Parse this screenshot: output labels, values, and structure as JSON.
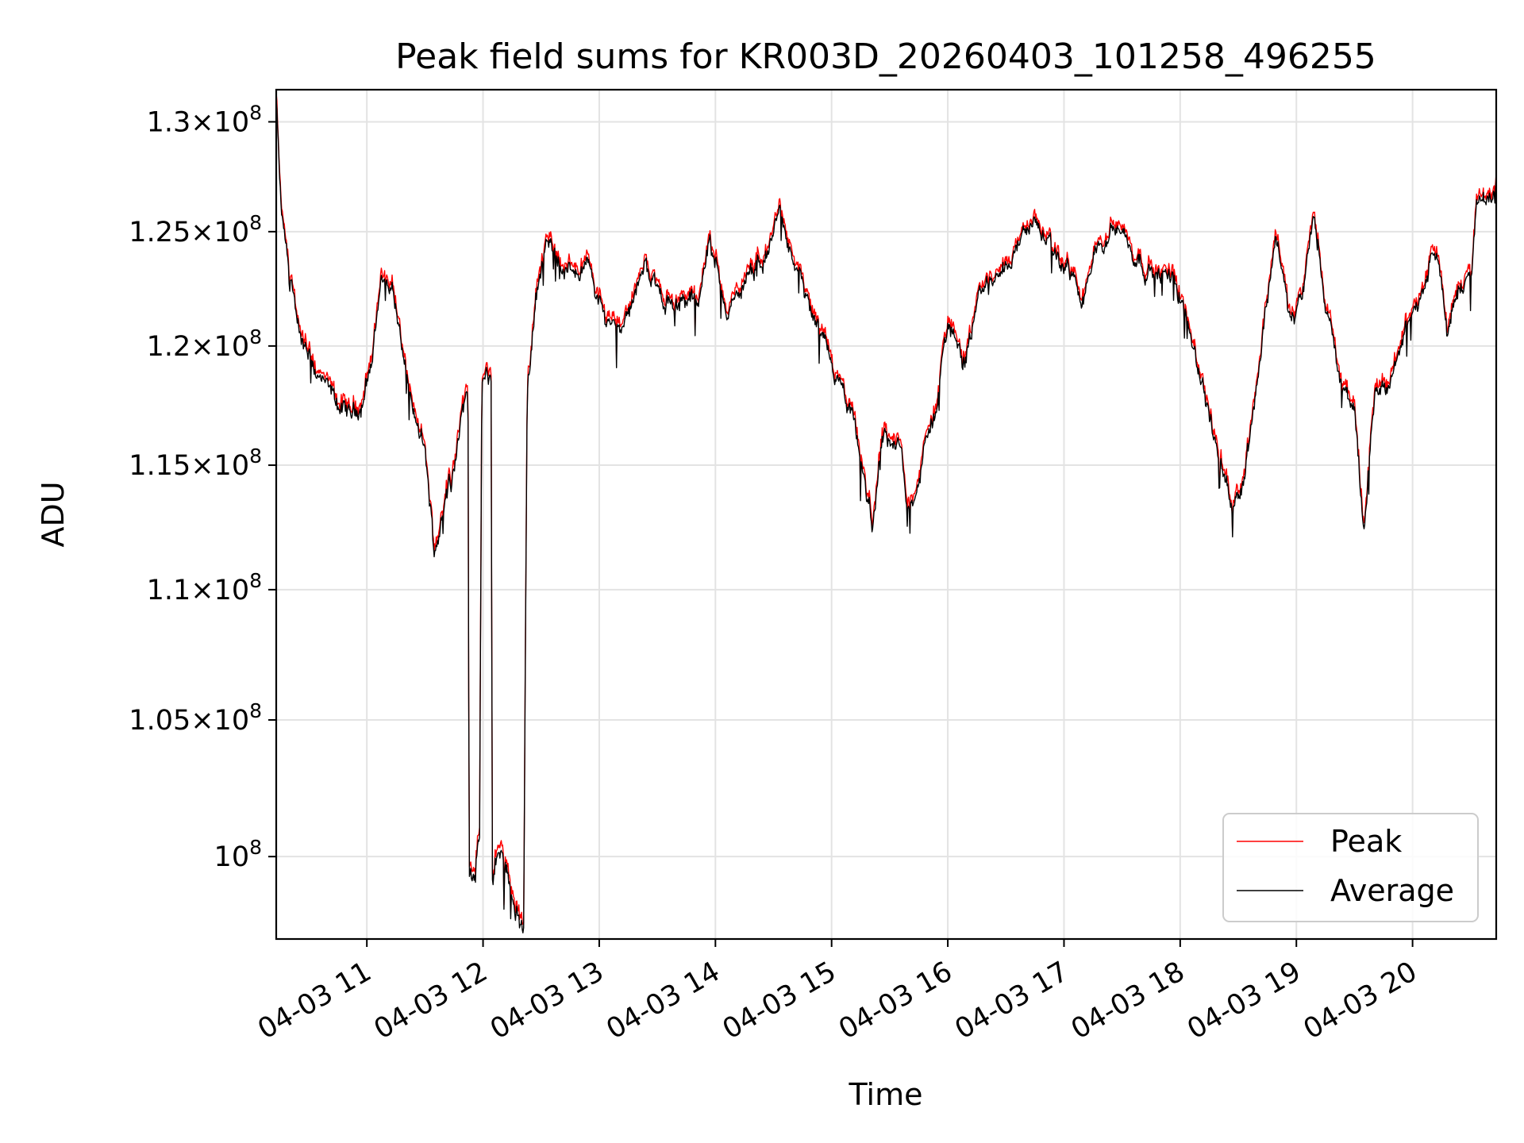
{
  "chart_data": {
    "type": "line",
    "title": "Peak field sums for KR003D_20260403_101258_496255",
    "xlabel": "Time",
    "ylabel": "ADU",
    "grid": true,
    "legend_position": "lower-right",
    "x_unit": "hours since 04-03 10:00",
    "xlim": [
      0.22,
      10.72
    ],
    "ylim": [
      97100000,
      131500000
    ],
    "x_ticks": [
      {
        "value": 1,
        "label": "04-03 11"
      },
      {
        "value": 2,
        "label": "04-03 12"
      },
      {
        "value": 3,
        "label": "04-03 13"
      },
      {
        "value": 4,
        "label": "04-03 14"
      },
      {
        "value": 5,
        "label": "04-03 15"
      },
      {
        "value": 6,
        "label": "04-03 16"
      },
      {
        "value": 7,
        "label": "04-03 17"
      },
      {
        "value": 8,
        "label": "04-03 18"
      },
      {
        "value": 9,
        "label": "04-03 19"
      },
      {
        "value": 10,
        "label": "04-03 20"
      }
    ],
    "y_ticks": [
      {
        "value": 100000000,
        "mantissa": "",
        "exp": "8"
      },
      {
        "value": 105000000,
        "mantissa": "1.05",
        "exp": "8"
      },
      {
        "value": 110000000,
        "mantissa": "1.1",
        "exp": "8"
      },
      {
        "value": 115000000,
        "mantissa": "1.15",
        "exp": "8"
      },
      {
        "value": 120000000,
        "mantissa": "1.2",
        "exp": "8"
      },
      {
        "value": 125000000,
        "mantissa": "1.25",
        "exp": "8"
      },
      {
        "value": 130000000,
        "mantissa": "1.3",
        "exp": "8"
      }
    ],
    "series": [
      {
        "name": "Peak",
        "color": "#ff0000",
        "offset": 200000
      },
      {
        "name": "Average",
        "color": "#000000",
        "offset": 0
      }
    ],
    "trend": [
      [
        0.22,
        131000000
      ],
      [
        0.26,
        126000000
      ],
      [
        0.32,
        123500000
      ],
      [
        0.45,
        120000000
      ],
      [
        0.6,
        118500000
      ],
      [
        0.75,
        117500000
      ],
      [
        0.85,
        117000000
      ],
      [
        0.95,
        117500000
      ],
      [
        1.05,
        119500000
      ],
      [
        1.12,
        123000000
      ],
      [
        1.22,
        122500000
      ],
      [
        1.3,
        120000000
      ],
      [
        1.4,
        117000000
      ],
      [
        1.5,
        115500000
      ],
      [
        1.58,
        111500000
      ],
      [
        1.7,
        114000000
      ],
      [
        1.8,
        116500000
      ],
      [
        1.85,
        117800000
      ],
      [
        1.87,
        118000000
      ],
      [
        1.88,
        99200000
      ],
      [
        1.92,
        99600000
      ],
      [
        1.97,
        100500000
      ],
      [
        1.99,
        118500000
      ],
      [
        2.07,
        118500000
      ],
      [
        2.08,
        99200000
      ],
      [
        2.15,
        100400000
      ],
      [
        2.25,
        98800000
      ],
      [
        2.35,
        97300000
      ],
      [
        2.38,
        118000000
      ],
      [
        2.45,
        122000000
      ],
      [
        2.55,
        124500000
      ],
      [
        2.7,
        123200000
      ],
      [
        2.9,
        123500000
      ],
      [
        3.05,
        121200000
      ],
      [
        3.2,
        121000000
      ],
      [
        3.4,
        123500000
      ],
      [
        3.55,
        122000000
      ],
      [
        3.7,
        121800000
      ],
      [
        3.85,
        122000000
      ],
      [
        3.95,
        124500000
      ],
      [
        4.1,
        121500000
      ],
      [
        4.3,
        123000000
      ],
      [
        4.45,
        124000000
      ],
      [
        4.55,
        126000000
      ],
      [
        4.65,
        124000000
      ],
      [
        4.85,
        121000000
      ],
      [
        5.05,
        118500000
      ],
      [
        5.2,
        116500000
      ],
      [
        5.35,
        112500000
      ],
      [
        5.45,
        116500000
      ],
      [
        5.6,
        115500000
      ],
      [
        5.65,
        113000000
      ],
      [
        5.75,
        114500000
      ],
      [
        5.9,
        117500000
      ],
      [
        6.0,
        121000000
      ],
      [
        6.15,
        119500000
      ],
      [
        6.3,
        122500000
      ],
      [
        6.5,
        123500000
      ],
      [
        6.6,
        124500000
      ],
      [
        6.75,
        125500000
      ],
      [
        6.9,
        124000000
      ],
      [
        7.1,
        123000000
      ],
      [
        7.15,
        121500000
      ],
      [
        7.3,
        124500000
      ],
      [
        7.45,
        125500000
      ],
      [
        7.6,
        124000000
      ],
      [
        7.8,
        123000000
      ],
      [
        7.95,
        123000000
      ],
      [
        8.05,
        121500000
      ],
      [
        8.3,
        116000000
      ],
      [
        8.45,
        113500000
      ],
      [
        8.55,
        114500000
      ],
      [
        8.7,
        120000000
      ],
      [
        8.82,
        125000000
      ],
      [
        8.95,
        121000000
      ],
      [
        9.05,
        122000000
      ],
      [
        9.15,
        125500000
      ],
      [
        9.28,
        121000000
      ],
      [
        9.4,
        118000000
      ],
      [
        9.5,
        117500000
      ],
      [
        9.58,
        112000000
      ],
      [
        9.68,
        118000000
      ],
      [
        9.8,
        118500000
      ],
      [
        9.95,
        121000000
      ],
      [
        10.1,
        122500000
      ],
      [
        10.2,
        124500000
      ],
      [
        10.3,
        120500000
      ],
      [
        10.4,
        122500000
      ],
      [
        10.5,
        123000000
      ],
      [
        10.55,
        126000000
      ],
      [
        10.65,
        126500000
      ],
      [
        10.72,
        127000000
      ]
    ]
  }
}
